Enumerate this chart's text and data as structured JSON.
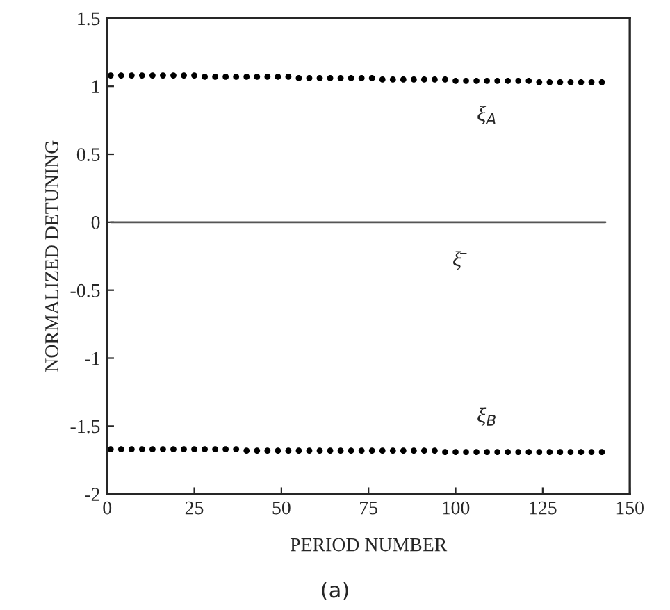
{
  "chart_data": {
    "type": "scatter",
    "xlabel": "PERIOD NUMBER",
    "ylabel": "NORMALIZED DETUNING",
    "xlim": [
      0,
      150
    ],
    "xticks": [
      0,
      25,
      50,
      75,
      100,
      125,
      150
    ],
    "ylim": [
      -2,
      1.5
    ],
    "yticks": [
      -2,
      -1.5,
      -1,
      -0.5,
      0,
      0.5,
      1,
      1.5
    ],
    "grid": false,
    "legend": false,
    "series": [
      {
        "name": "ξ$_{A}$",
        "marker": "circle",
        "color": "#000000",
        "x": [
          1,
          4,
          7,
          10,
          13,
          16,
          19,
          22,
          25,
          28,
          31,
          34,
          37,
          40,
          43,
          46,
          49,
          52,
          55,
          58,
          61,
          64,
          67,
          70,
          73,
          76,
          79,
          82,
          85,
          88,
          91,
          94,
          97,
          100,
          103,
          106,
          109,
          112,
          115,
          118,
          121,
          124,
          127,
          130,
          133,
          136,
          139,
          142
        ],
        "values": [
          1.08,
          1.08,
          1.08,
          1.08,
          1.08,
          1.08,
          1.08,
          1.08,
          1.08,
          1.07,
          1.07,
          1.07,
          1.07,
          1.07,
          1.07,
          1.07,
          1.07,
          1.07,
          1.06,
          1.06,
          1.06,
          1.06,
          1.06,
          1.06,
          1.06,
          1.06,
          1.05,
          1.05,
          1.05,
          1.05,
          1.05,
          1.05,
          1.05,
          1.04,
          1.04,
          1.04,
          1.04,
          1.04,
          1.04,
          1.04,
          1.04,
          1.03,
          1.03,
          1.03,
          1.03,
          1.03,
          1.03,
          1.03
        ]
      },
      {
        "name": "ξ̄",
        "type": "line",
        "marker": "none",
        "color": "#555555",
        "x": [
          1,
          143
        ],
        "values": [
          0,
          0
        ]
      },
      {
        "name": "ξ$_{B}$",
        "marker": "circle",
        "color": "#000000",
        "x": [
          1,
          4,
          7,
          10,
          13,
          16,
          19,
          22,
          25,
          28,
          31,
          34,
          37,
          40,
          43,
          46,
          49,
          52,
          55,
          58,
          61,
          64,
          67,
          70,
          73,
          76,
          79,
          82,
          85,
          88,
          91,
          94,
          97,
          100,
          103,
          106,
          109,
          112,
          115,
          118,
          121,
          124,
          127,
          130,
          133,
          136,
          139,
          142
        ],
        "values": [
          -1.67,
          -1.67,
          -1.67,
          -1.67,
          -1.67,
          -1.67,
          -1.67,
          -1.67,
          -1.67,
          -1.67,
          -1.67,
          -1.67,
          -1.67,
          -1.68,
          -1.68,
          -1.68,
          -1.68,
          -1.68,
          -1.68,
          -1.68,
          -1.68,
          -1.68,
          -1.68,
          -1.68,
          -1.68,
          -1.68,
          -1.68,
          -1.68,
          -1.68,
          -1.68,
          -1.68,
          -1.68,
          -1.69,
          -1.69,
          -1.69,
          -1.69,
          -1.69,
          -1.69,
          -1.69,
          -1.69,
          -1.69,
          -1.69,
          -1.69,
          -1.69,
          -1.69,
          -1.69,
          -1.69,
          -1.69
        ]
      }
    ],
    "annotations": [
      "(a)"
    ]
  }
}
